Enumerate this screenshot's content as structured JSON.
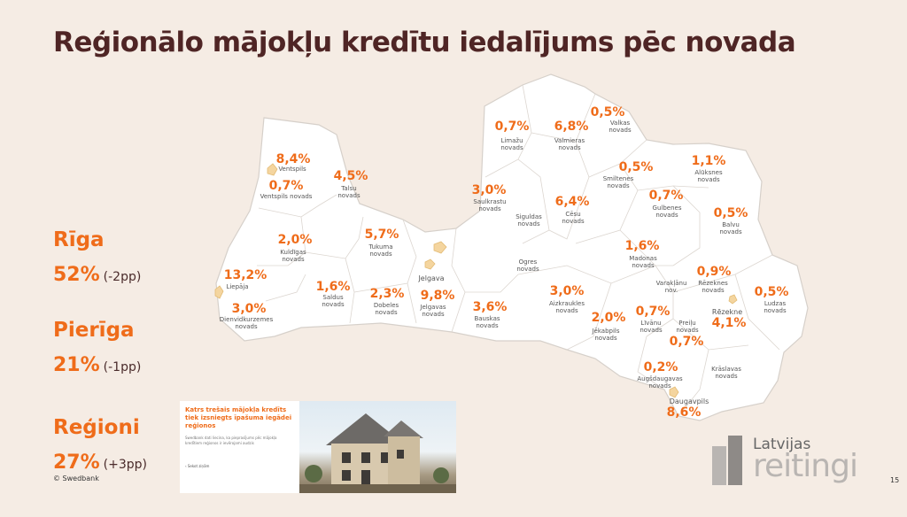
{
  "title": "Reģionālo mājokļu kredītu iedalījums pēc novada",
  "stats": [
    {
      "label": "Rīga",
      "value": "52%",
      "delta": "(-2pp)"
    },
    {
      "label": "Pierīga",
      "value": "21%",
      "delta": "(-1pp)"
    },
    {
      "label": "Reģioni",
      "value": "27%",
      "delta": "(+3pp)"
    }
  ],
  "regions": {
    "ventspils": {
      "pct": "8,4%",
      "name": "Ventspils"
    },
    "ventspils_novads": {
      "pct": "0,7%",
      "name": "Ventspils novads"
    },
    "talsu": {
      "pct": "4,5%",
      "name": "Talsu novads"
    },
    "kuldigas": {
      "pct": "2,0%",
      "name": "Kuldīgas novads"
    },
    "liepaja": {
      "pct": "13,2%",
      "name": "Liepāja"
    },
    "dienvidkurzemes": {
      "pct": "3,0%",
      "name": "Dienvidkurzemes novads"
    },
    "tukuma": {
      "pct": "5,7%",
      "name": "Tukuma novads"
    },
    "saldus": {
      "pct": "1,6%",
      "name": "Saldus novads"
    },
    "dobeles": {
      "pct": "2,3%",
      "name": "Dobeles novads"
    },
    "jelgava": {
      "name": "Jelgava"
    },
    "jelgavas": {
      "pct": "9,8%",
      "name": "Jelgavas novads"
    },
    "bauskas": {
      "pct": "3,6%",
      "name": "Bauskas novads"
    },
    "limazu": {
      "pct": "0,7%",
      "name": "Limažu novads"
    },
    "valmieras": {
      "pct": "6,8%",
      "name": "Valmieras novads"
    },
    "valkas": {
      "pct": "0,5%",
      "name": "Valkas novads"
    },
    "saulkrastu": {
      "pct": "3,0%",
      "name": "Saulkrastu novads"
    },
    "siguldas": {
      "name": "Siguldas novads"
    },
    "cesu": {
      "pct": "6,4%",
      "name": "Cēsu novads"
    },
    "smiltenes": {
      "pct": "0,5%",
      "name": "Smiltenes novads"
    },
    "aluksnes": {
      "pct": "1,1%",
      "name": "Alūksnes novads"
    },
    "gulbenes": {
      "pct": "0,7%",
      "name": "Gulbenes novads"
    },
    "balvu": {
      "pct": "0,5%",
      "name": "Balvu novads"
    },
    "ogres": {
      "name": "Ogres novads"
    },
    "madonas": {
      "pct": "1,6%",
      "name": "Madonas novads"
    },
    "aizkraukles": {
      "pct": "3,0%",
      "name": "Aizkraukles novads"
    },
    "rezeknes_nov": {
      "pct": "0,9%",
      "name": "Rēzeknes novads"
    },
    "varaklanu": {
      "name": "Varakļānu nov."
    },
    "ludzas": {
      "pct": "0,5%",
      "name": "Ludzas novads"
    },
    "rezekne": {
      "pct": "4,1%",
      "name": "Rēzekne"
    },
    "jekabpils": {
      "pct": "2,0%",
      "name": "Jēkabpils novads"
    },
    "livanu": {
      "pct": "0,7%",
      "name": "Līvānu novads"
    },
    "preilu": {
      "pct": "0,7%",
      "name": "Preiļu novads"
    },
    "augsdaugavas": {
      "pct": "0,2%",
      "name": "Augšdaugavas novads"
    },
    "kraslavas": {
      "name": "Krāslavas novads"
    },
    "daugavpils": {
      "pct": "8,6%",
      "name": "Daugavpils"
    }
  },
  "card": {
    "headline": "Katrs trešais mājokļa kredīts tiek izsniegts īpašuma iegādei reģionos",
    "sub": "Swedbank dati liecina, ka pieprasījums pēc mājokļa kredītiem reģionos ir ievērojami audzis",
    "button": "Sekot ziņām"
  },
  "credit": "© Swedbank",
  "logo": {
    "top": "Latvijas",
    "bottom": "reitingi"
  },
  "page_number": "15",
  "colors": {
    "accent": "#ef6c1a",
    "title": "#4f2525",
    "background": "#f5ece4"
  }
}
